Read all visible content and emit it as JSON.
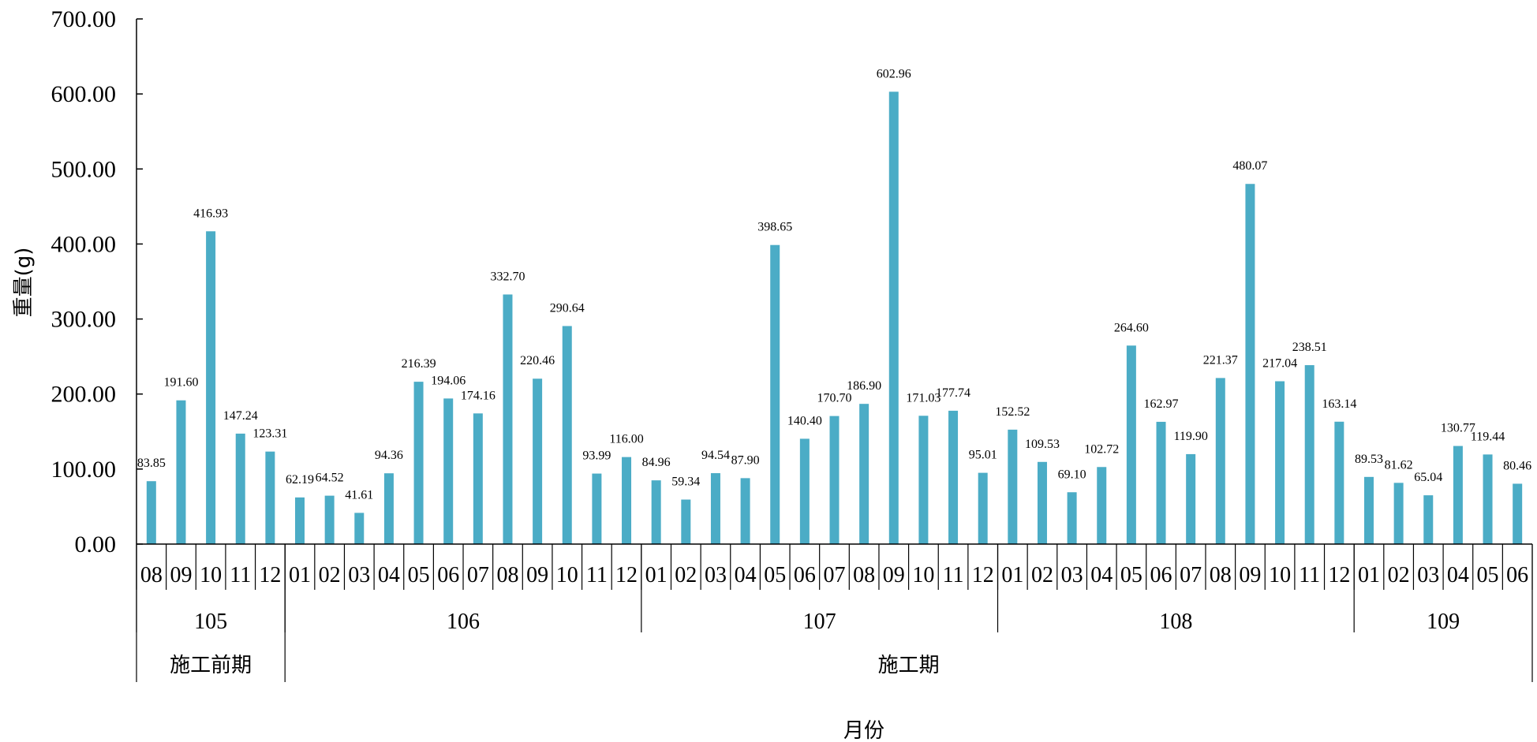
{
  "chart_data": {
    "type": "bar",
    "ylabel": "重量(g)",
    "xlabel": "月份",
    "ylim": [
      0,
      700
    ],
    "yticks": [
      "0.00",
      "100.00",
      "200.00",
      "300.00",
      "400.00",
      "500.00",
      "600.00",
      "700.00"
    ],
    "bar_color": "#4BACC6",
    "grid": false,
    "legend": "none",
    "categories": [
      "08",
      "09",
      "10",
      "11",
      "12",
      "01",
      "02",
      "03",
      "04",
      "05",
      "06",
      "07",
      "08",
      "09",
      "10",
      "11",
      "12",
      "01",
      "02",
      "03",
      "04",
      "05",
      "06",
      "07",
      "08",
      "09",
      "10",
      "11",
      "12",
      "01",
      "02",
      "03",
      "04",
      "05",
      "06",
      "07",
      "08",
      "09",
      "10",
      "11",
      "12",
      "01",
      "02",
      "03",
      "04",
      "05",
      "06"
    ],
    "values": [
      83.85,
      191.6,
      416.93,
      147.24,
      123.31,
      62.19,
      64.52,
      41.61,
      94.36,
      216.39,
      194.06,
      174.16,
      332.7,
      220.46,
      290.64,
      93.99,
      116.0,
      84.96,
      59.34,
      94.54,
      87.9,
      398.65,
      140.4,
      170.7,
      186.9,
      602.96,
      171.03,
      177.74,
      95.01,
      152.52,
      109.53,
      69.1,
      102.72,
      264.6,
      162.97,
      119.9,
      221.37,
      480.07,
      217.04,
      238.51,
      163.14,
      89.53,
      81.62,
      65.04,
      130.77,
      119.44,
      80.46
    ],
    "value_labels": [
      "83.85",
      "191.60",
      "416.93",
      "147.24",
      "123.31",
      "62.19",
      "64.52",
      "41.61",
      "94.36",
      "216.39",
      "194.06",
      "174.16",
      "332.70",
      "220.46",
      "290.64",
      "93.99",
      "116.00",
      "84.96",
      "59.34",
      "94.54",
      "87.90",
      "398.65",
      "140.40",
      "170.70",
      "186.90",
      "602.96",
      "171.03",
      "177.74",
      "95.01",
      "152.52",
      "109.53",
      "69.10",
      "102.72",
      "264.60",
      "162.97",
      "119.90",
      "221.37",
      "480.07",
      "217.04",
      "238.51",
      "163.14",
      "89.53",
      "81.62",
      "65.04",
      "130.77",
      "119.44",
      "80.46"
    ],
    "years": [
      {
        "label": "105",
        "count": 5
      },
      {
        "label": "106",
        "count": 12
      },
      {
        "label": "107",
        "count": 12
      },
      {
        "label": "108",
        "count": 12
      },
      {
        "label": "109",
        "count": 6
      }
    ],
    "periods": [
      {
        "label": "施工前期",
        "count": 5
      },
      {
        "label": "施工期",
        "count": 42
      }
    ]
  }
}
